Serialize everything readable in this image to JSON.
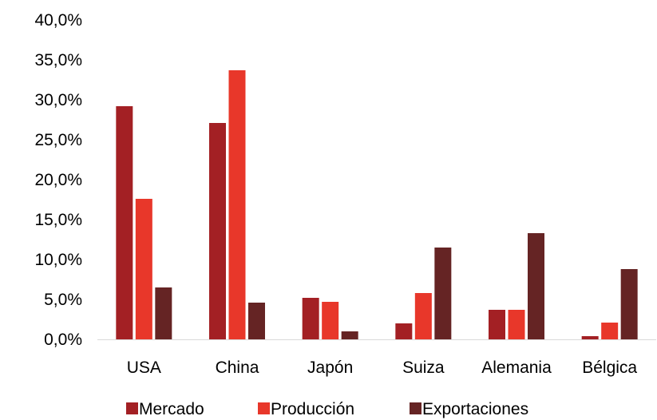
{
  "chart_data": {
    "type": "bar",
    "categories": [
      "USA",
      "China",
      "Japón",
      "Suiza",
      "Alemania",
      "Bélgica"
    ],
    "series": [
      {
        "name": "Mercado",
        "color": "#A32024",
        "values": [
          29.2,
          27.1,
          5.2,
          2.0,
          3.7,
          0.4
        ]
      },
      {
        "name": "Producción",
        "color": "#E8372A",
        "values": [
          17.6,
          33.7,
          4.7,
          5.8,
          3.7,
          2.1
        ]
      },
      {
        "name": "Exportaciones",
        "color": "#652424",
        "values": [
          6.5,
          4.6,
          1.0,
          11.5,
          13.3,
          8.8
        ]
      }
    ],
    "ylim": [
      0,
      40
    ],
    "yticks": [
      "0,0%",
      "5,0%",
      "10,0%",
      "15,0%",
      "20,0%",
      "25,0%",
      "30,0%",
      "35,0%",
      "40,0%"
    ],
    "grid": false,
    "legend_position": "bottom",
    "title": "",
    "xlabel": "",
    "ylabel": ""
  }
}
